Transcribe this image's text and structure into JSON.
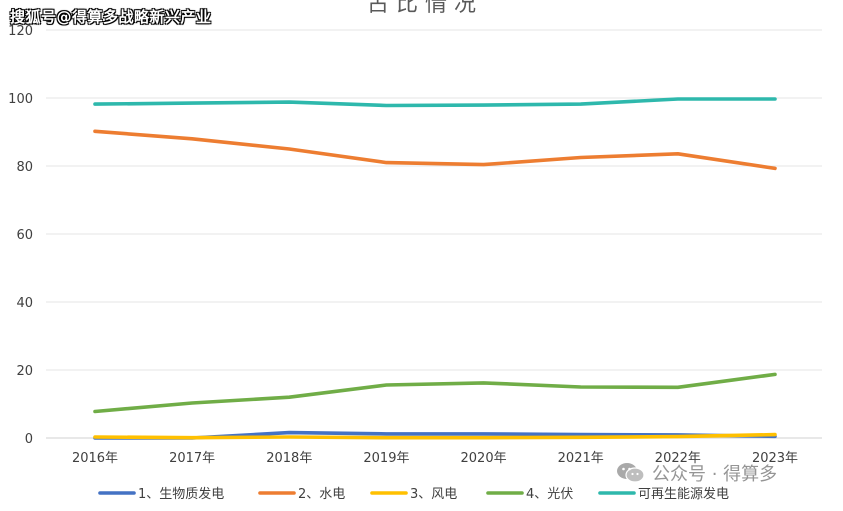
{
  "watermark_top": "搜狐号@得算多战略新兴产业",
  "watermark_bottom": "公众号 · 得算多",
  "title_partial": "占 比 情 况",
  "chart_data": {
    "type": "line",
    "title": "占 比 情 况",
    "categories": [
      "2016年",
      "2017年",
      "2018年",
      "2019年",
      "2020年",
      "2021年",
      "2022年",
      "2023年"
    ],
    "ylim": [
      0,
      120
    ],
    "yticks": [
      0,
      20,
      40,
      60,
      80,
      100,
      120
    ],
    "grid": true,
    "legend_position": "bottom",
    "series": [
      {
        "name": "1、生物质发电",
        "color": "#4472C4",
        "values": [
          0,
          0,
          1.6,
          1.2,
          1.2,
          1.0,
          0.9,
          0.5
        ]
      },
      {
        "name": "2、水电",
        "color": "#ED7D31",
        "values": [
          90.2,
          88.0,
          85.0,
          81.0,
          80.4,
          82.5,
          83.6,
          79.3
        ]
      },
      {
        "name": "3、风电",
        "color": "#FFC000",
        "values": [
          0.3,
          0.1,
          0.3,
          0.1,
          0.1,
          0.2,
          0.4,
          1.0
        ]
      },
      {
        "name": "4、光伏",
        "color": "#70AD47",
        "values": [
          7.8,
          10.3,
          12.0,
          15.6,
          16.2,
          15.0,
          14.9,
          18.7
        ]
      },
      {
        "name": "可再生能源发电",
        "color": "#2EB8AC",
        "values": [
          98.2,
          98.5,
          98.8,
          97.8,
          97.9,
          98.2,
          99.7,
          99.7
        ]
      }
    ]
  }
}
